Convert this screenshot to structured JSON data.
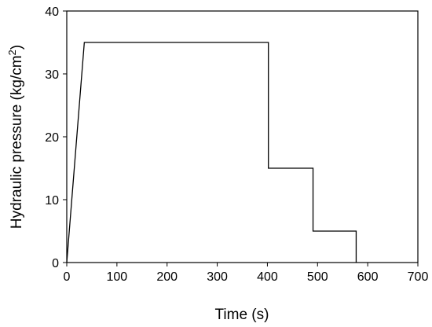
{
  "chart_data": {
    "type": "line",
    "title": "",
    "xlabel": "Time (s)",
    "ylabel_main": "Hydraulic pressure (kg/cm",
    "ylabel_sup": "2",
    "ylabel_close": ")",
    "xlim": [
      0,
      700
    ],
    "ylim": [
      0,
      40
    ],
    "xticks": [
      0,
      100,
      200,
      300,
      400,
      500,
      600,
      700
    ],
    "yticks": [
      0,
      10,
      20,
      30,
      40
    ],
    "grid": false,
    "legend": "none",
    "series": [
      {
        "color": "#000000",
        "points": [
          [
            0,
            0
          ],
          [
            35,
            35
          ],
          [
            402,
            35
          ],
          [
            402,
            15
          ],
          [
            491,
            15
          ],
          [
            491,
            5
          ],
          [
            577,
            5
          ],
          [
            577,
            0
          ]
        ]
      }
    ]
  }
}
